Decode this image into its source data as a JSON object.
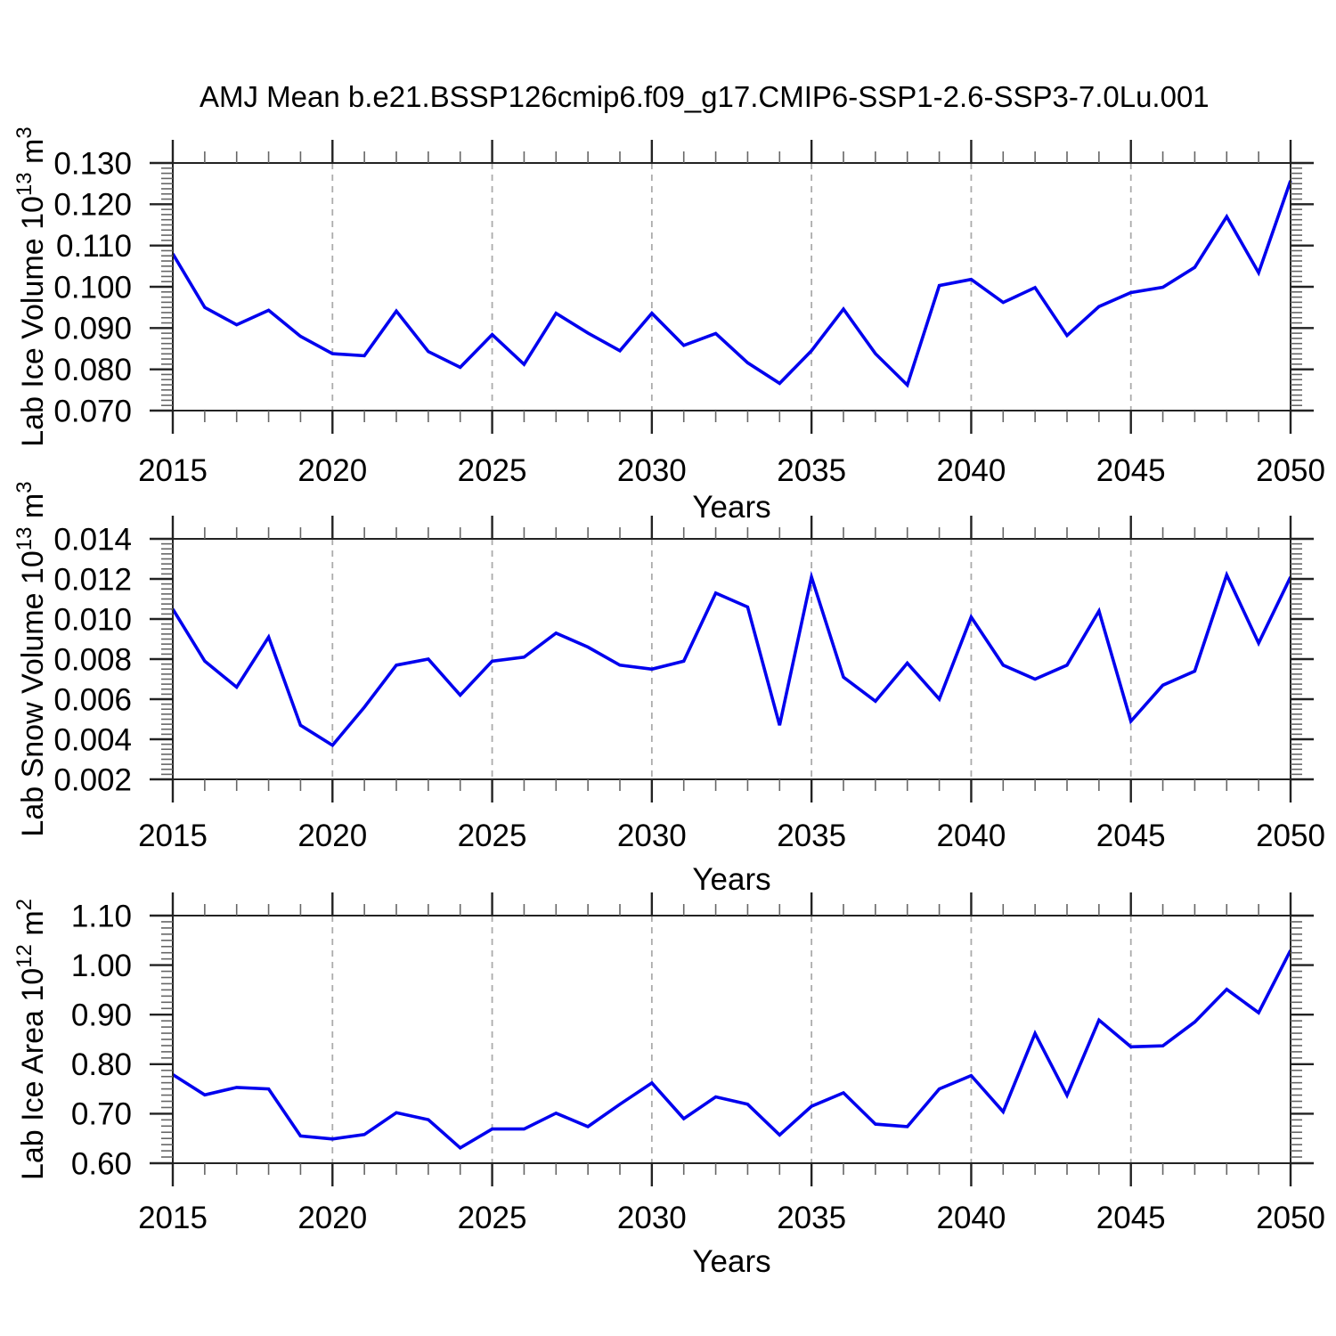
{
  "figure": {
    "title": "AMJ Mean b.e21.BSSP126cmip6.f09_g17.CMIP6-SSP1-2.6-SSP3-7.0Lu.001",
    "line_color": "#0000EE",
    "grid_color": "#ABABAB",
    "axis_color": "#222222",
    "minor_tick_color": "#666666",
    "text_color": "#000000"
  },
  "chart_data": [
    {
      "type": "line",
      "title": "",
      "xlabel": "Years",
      "ylabel": "Lab Ice Volume 10¹³ m³",
      "ylabel_rich": [
        {
          "t": "Lab Ice Volume 10",
          "sup": false
        },
        {
          "t": "13",
          "sup": true
        },
        {
          "t": " m",
          "sup": false
        },
        {
          "t": "3",
          "sup": true
        }
      ],
      "xlim": [
        2015,
        2050
      ],
      "ylim": [
        0.07,
        0.13
      ],
      "x_major_ticks": [
        2015,
        2020,
        2025,
        2030,
        2035,
        2040,
        2045,
        2050
      ],
      "x_minor_step": 1,
      "grid_x": [
        2020,
        2025,
        2030,
        2035,
        2040,
        2045
      ],
      "grid_on": "x-dashed",
      "legend": "none",
      "y_ticks": [
        {
          "v": 0.07,
          "label": "0.070"
        },
        {
          "v": 0.08,
          "label": "0.080"
        },
        {
          "v": 0.09,
          "label": "0.090"
        },
        {
          "v": 0.1,
          "label": "0.100"
        },
        {
          "v": 0.11,
          "label": "0.110"
        },
        {
          "v": 0.12,
          "label": "0.120"
        },
        {
          "v": 0.13,
          "label": "0.130"
        }
      ],
      "y_minor_per_major": 8,
      "x": [
        2015,
        2016,
        2017,
        2018,
        2019,
        2020,
        2021,
        2022,
        2023,
        2024,
        2025,
        2026,
        2027,
        2028,
        2029,
        2030,
        2031,
        2032,
        2033,
        2034,
        2035,
        2036,
        2037,
        2038,
        2039,
        2040,
        2041,
        2042,
        2043,
        2044,
        2045,
        2046,
        2047,
        2048,
        2049,
        2050
      ],
      "values": [
        0.108,
        0.095,
        0.0908,
        0.0943,
        0.088,
        0.0838,
        0.0833,
        0.0941,
        0.0843,
        0.0805,
        0.0884,
        0.0812,
        0.0936,
        0.0888,
        0.0845,
        0.0936,
        0.0858,
        0.0887,
        0.0816,
        0.0766,
        0.0845,
        0.0946,
        0.0838,
        0.0762,
        0.1003,
        0.1018,
        0.0962,
        0.0998,
        0.0882,
        0.0952,
        0.0986,
        0.0999,
        0.1047,
        0.117,
        0.1034,
        0.1257
      ]
    },
    {
      "type": "line",
      "title": "",
      "xlabel": "Years",
      "ylabel": "Lab Snow Volume 10¹³ m³",
      "ylabel_rich": [
        {
          "t": "Lab Snow Volume 10",
          "sup": false
        },
        {
          "t": "13",
          "sup": true
        },
        {
          "t": " m",
          "sup": false
        },
        {
          "t": "3",
          "sup": true
        }
      ],
      "xlim": [
        2015,
        2050
      ],
      "ylim": [
        0.002,
        0.014
      ],
      "x_major_ticks": [
        2015,
        2020,
        2025,
        2030,
        2035,
        2040,
        2045,
        2050
      ],
      "x_minor_step": 1,
      "grid_x": [
        2020,
        2025,
        2030,
        2035,
        2040,
        2045
      ],
      "grid_on": "x-dashed",
      "legend": "none",
      "y_ticks": [
        {
          "v": 0.002,
          "label": "0.002"
        },
        {
          "v": 0.004,
          "label": "0.004"
        },
        {
          "v": 0.006,
          "label": "0.006"
        },
        {
          "v": 0.008,
          "label": "0.008"
        },
        {
          "v": 0.01,
          "label": "0.010"
        },
        {
          "v": 0.012,
          "label": "0.012"
        },
        {
          "v": 0.014,
          "label": "0.014"
        }
      ],
      "y_minor_per_major": 8,
      "x": [
        2015,
        2016,
        2017,
        2018,
        2019,
        2020,
        2021,
        2022,
        2023,
        2024,
        2025,
        2026,
        2027,
        2028,
        2029,
        2030,
        2031,
        2032,
        2033,
        2034,
        2035,
        2036,
        2037,
        2038,
        2039,
        2040,
        2041,
        2042,
        2043,
        2044,
        2045,
        2046,
        2047,
        2048,
        2049,
        2050
      ],
      "values": [
        0.0105,
        0.0079,
        0.0066,
        0.0091,
        0.0047,
        0.0037,
        0.0056,
        0.0077,
        0.008,
        0.0062,
        0.0079,
        0.0081,
        0.0093,
        0.0086,
        0.0077,
        0.0075,
        0.0079,
        0.0113,
        0.0106,
        0.0047,
        0.0121,
        0.0071,
        0.0059,
        0.0078,
        0.006,
        0.0101,
        0.0077,
        0.007,
        0.0077,
        0.0104,
        0.0049,
        0.0067,
        0.0074,
        0.0122,
        0.0088,
        0.0121
      ]
    },
    {
      "type": "line",
      "title": "",
      "xlabel": "Years",
      "ylabel": "Lab Ice Area 10¹² m²",
      "ylabel_rich": [
        {
          "t": "Lab Ice Area 10",
          "sup": false
        },
        {
          "t": "12",
          "sup": true
        },
        {
          "t": " m",
          "sup": false
        },
        {
          "t": "2",
          "sup": true
        }
      ],
      "xlim": [
        2015,
        2050
      ],
      "ylim": [
        0.6,
        1.1
      ],
      "x_major_ticks": [
        2015,
        2020,
        2025,
        2030,
        2035,
        2040,
        2045,
        2050
      ],
      "x_minor_step": 1,
      "grid_x": [
        2020,
        2025,
        2030,
        2035,
        2040,
        2045
      ],
      "grid_on": "x-dashed",
      "legend": "none",
      "y_ticks": [
        {
          "v": 0.6,
          "label": "0.60"
        },
        {
          "v": 0.7,
          "label": "0.70"
        },
        {
          "v": 0.8,
          "label": "0.80"
        },
        {
          "v": 0.9,
          "label": "0.90"
        },
        {
          "v": 1.0,
          "label": "1.00"
        },
        {
          "v": 1.1,
          "label": "1.10"
        }
      ],
      "y_minor_per_major": 8,
      "x": [
        2015,
        2016,
        2017,
        2018,
        2019,
        2020,
        2021,
        2022,
        2023,
        2024,
        2025,
        2026,
        2027,
        2028,
        2029,
        2030,
        2031,
        2032,
        2033,
        2034,
        2035,
        2036,
        2037,
        2038,
        2039,
        2040,
        2041,
        2042,
        2043,
        2044,
        2045,
        2046,
        2047,
        2048,
        2049,
        2050
      ],
      "values": [
        0.779,
        0.738,
        0.753,
        0.75,
        0.655,
        0.649,
        0.658,
        0.702,
        0.688,
        0.631,
        0.669,
        0.669,
        0.701,
        0.674,
        0.719,
        0.762,
        0.69,
        0.734,
        0.719,
        0.657,
        0.715,
        0.742,
        0.679,
        0.674,
        0.75,
        0.777,
        0.704,
        0.862,
        0.737,
        0.889,
        0.835,
        0.837,
        0.885,
        0.951,
        0.904,
        1.03
      ]
    }
  ]
}
